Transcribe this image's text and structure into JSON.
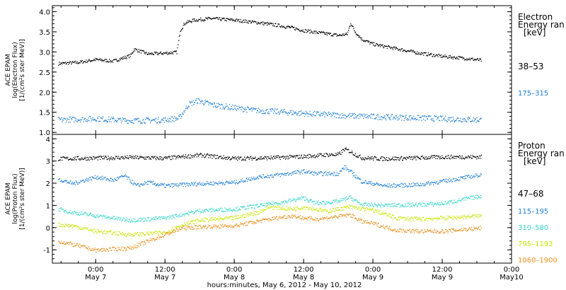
{
  "chart_data": [
    {
      "type": "scatter",
      "panel": "electron",
      "ylabel": [
        "ACE EPAM",
        "log(Electron Flux)",
        "[1/(cm²s ster MeV)]"
      ],
      "ylim": [
        0.95,
        4.15
      ],
      "yticks": [
        "1.0",
        "1.5",
        "2.0",
        "2.5",
        "3.0",
        "3.5",
        "4.0"
      ],
      "legend_title": [
        "Electron",
        "Energy ran",
        "[keV]"
      ],
      "legend_placement": "right",
      "series": [
        {
          "name": "38–53",
          "color": "#000000",
          "x_hours": [
            -6.5,
            -3,
            0,
            3,
            6,
            6.6,
            9,
            12,
            14,
            14.6,
            15.4,
            17,
            20,
            24,
            28,
            32,
            34,
            36,
            40,
            42,
            43.5,
            44.1,
            44.8,
            46,
            48,
            52,
            56,
            60,
            64,
            66.8
          ],
          "values": [
            2.72,
            2.75,
            2.82,
            2.78,
            2.92,
            3.08,
            2.96,
            2.98,
            3.0,
            3.55,
            3.73,
            3.8,
            3.84,
            3.8,
            3.74,
            3.66,
            3.61,
            3.54,
            3.46,
            3.42,
            3.45,
            3.73,
            3.52,
            3.33,
            3.2,
            3.09,
            2.98,
            2.9,
            2.85,
            2.8
          ]
        },
        {
          "name": "175–315",
          "color": "#1e7fd6",
          "x_hours": [
            -6.5,
            0,
            6,
            12,
            14.4,
            16,
            17.6,
            20,
            24,
            28,
            32,
            36,
            40,
            44,
            48,
            56,
            62,
            66.8
          ],
          "values": [
            1.32,
            1.35,
            1.3,
            1.32,
            1.36,
            1.7,
            1.8,
            1.7,
            1.62,
            1.55,
            1.52,
            1.48,
            1.45,
            1.42,
            1.4,
            1.37,
            1.34,
            1.32
          ]
        }
      ]
    },
    {
      "type": "scatter",
      "panel": "proton",
      "ylabel": [
        "ACE EPAM",
        "log(Proton Flux)",
        "[1/(cm²s ster MeV)]"
      ],
      "ylim": [
        -1.6,
        4.2
      ],
      "yticks": [
        "-1",
        "0",
        "1",
        "2",
        "3",
        "4"
      ],
      "legend_title": [
        "Proton",
        "Energy ran",
        "[keV]"
      ],
      "legend_placement": "right",
      "series": [
        {
          "name": "47–68",
          "color": "#000000",
          "x_hours": [
            -6.5,
            0,
            6,
            12,
            18,
            24,
            30,
            36,
            40,
            42,
            43,
            44,
            45,
            46,
            50,
            56,
            60,
            66.8
          ],
          "values": [
            3.12,
            3.15,
            3.18,
            3.14,
            3.28,
            3.13,
            3.16,
            3.22,
            3.3,
            3.3,
            3.55,
            3.45,
            3.3,
            3.16,
            3.12,
            3.16,
            3.2,
            3.2
          ]
        },
        {
          "name": "115–195",
          "color": "#1e7fd6",
          "x_hours": [
            -6.5,
            -4,
            0,
            3,
            5,
            7,
            9,
            12,
            18,
            24,
            28,
            32,
            36,
            38,
            40,
            42,
            43,
            44,
            46,
            50,
            56,
            60,
            66.8
          ],
          "values": [
            2.2,
            2.0,
            2.3,
            2.15,
            2.35,
            1.9,
            2.05,
            1.9,
            2.0,
            2.05,
            2.3,
            2.4,
            2.55,
            2.45,
            2.45,
            2.45,
            2.75,
            2.55,
            2.1,
            1.9,
            1.95,
            2.1,
            2.4
          ]
        },
        {
          "name": "310–580",
          "color": "#33d6cc",
          "x_hours": [
            -6.5,
            -4,
            0,
            6,
            12,
            18,
            24,
            28,
            32,
            36,
            38,
            40,
            42,
            44,
            46,
            50,
            56,
            60,
            66.8
          ],
          "values": [
            0.85,
            0.7,
            0.55,
            0.35,
            0.45,
            0.78,
            0.85,
            1.0,
            1.15,
            1.35,
            1.12,
            1.15,
            1.2,
            1.38,
            1.05,
            1.02,
            1.05,
            1.1,
            1.45
          ]
        },
        {
          "name": "795–1193",
          "color": "#c8e600",
          "x_hours": [
            -6.5,
            -4,
            0,
            6,
            12,
            15,
            18,
            24,
            28,
            30,
            34,
            36,
            38,
            40,
            44,
            48,
            52,
            56,
            60,
            66.8
          ],
          "values": [
            0.15,
            0.1,
            -0.15,
            -0.3,
            -0.2,
            0.15,
            0.35,
            0.45,
            0.7,
            0.95,
            0.85,
            0.95,
            0.85,
            0.75,
            0.95,
            0.8,
            0.45,
            0.4,
            0.45,
            0.55
          ]
        },
        {
          "name": "1060–1900",
          "color": "#e8901e",
          "x_hours": [
            -6.5,
            -3,
            0,
            6,
            9,
            12,
            15,
            18,
            24,
            28,
            30,
            34,
            36,
            38,
            40,
            44,
            46,
            48,
            52,
            56,
            60,
            66.8
          ],
          "values": [
            -0.6,
            -0.8,
            -1.0,
            -0.9,
            -0.6,
            -0.3,
            0.0,
            0.05,
            0.1,
            0.3,
            0.4,
            0.55,
            0.45,
            0.4,
            0.45,
            0.6,
            0.3,
            0.2,
            -0.1,
            -0.15,
            -0.15,
            0.0
          ]
        }
      ]
    }
  ],
  "x_axis": {
    "xlim_hours": [
      -7.5,
      72
    ],
    "ticks": [
      {
        "hours": 0,
        "time": "0:00",
        "date": "May 7"
      },
      {
        "hours": 12,
        "time": "12:00",
        "date": "May 7"
      },
      {
        "hours": 24,
        "time": "0:00",
        "date": "May 8"
      },
      {
        "hours": 36,
        "time": "12:00",
        "date": "May 8"
      },
      {
        "hours": 48,
        "time": "0:00",
        "date": "May 9"
      },
      {
        "hours": 60,
        "time": "12:00",
        "date": "May 9"
      },
      {
        "hours": 72,
        "time": "0:00",
        "date": "May10"
      }
    ],
    "label": "hours:minutes, May  6, 2012 - May 10, 2012"
  }
}
